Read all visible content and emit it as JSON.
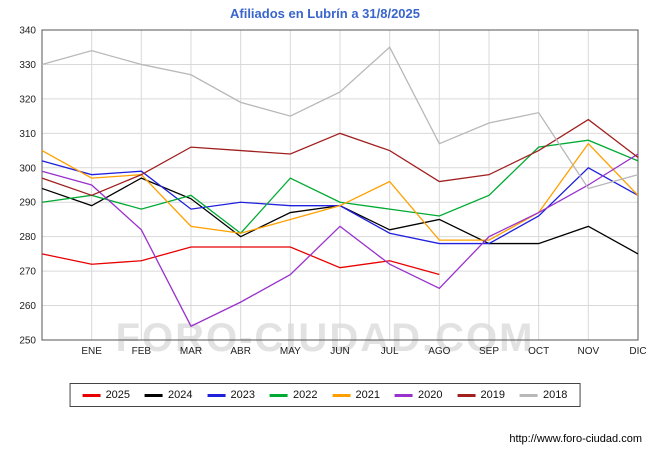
{
  "watermark": "FORO-CIUDAD.COM",
  "footer": {
    "url": "http://www.foro-ciudad.com"
  },
  "colors": {
    "title": "#3a66cc",
    "grid": "#d9d9d9",
    "plot_border": "#555555",
    "watermark": "#cccccc"
  },
  "chart_data": {
    "type": "line",
    "title": "Afiliados en Lubrín a 31/8/2025",
    "xlabel": "",
    "ylabel": "",
    "ylim": [
      250,
      340
    ],
    "ytick_step": 10,
    "grid": true,
    "legend_position": "bottom",
    "categories": [
      "",
      "ENE",
      "FEB",
      "MAR",
      "ABR",
      "MAY",
      "JUN",
      "JUL",
      "AGO",
      "SEP",
      "OCT",
      "NOV",
      "DIC"
    ],
    "series": [
      {
        "name": "2025",
        "color": "#e80000",
        "values": [
          275,
          272,
          273,
          277,
          277,
          277,
          271,
          273,
          269,
          null,
          null,
          null,
          null
        ]
      },
      {
        "name": "2024",
        "color": "#000000",
        "values": [
          294,
          289,
          297,
          291,
          280,
          287,
          289,
          282,
          285,
          278,
          278,
          283,
          275
        ]
      },
      {
        "name": "2023",
        "color": "#2020dd",
        "values": [
          302,
          298,
          299,
          288,
          290,
          289,
          289,
          281,
          278,
          278,
          286,
          300,
          292
        ]
      },
      {
        "name": "2022",
        "color": "#00aa33",
        "values": [
          290,
          292,
          288,
          292,
          281,
          297,
          290,
          288,
          286,
          292,
          306,
          308,
          302
        ]
      },
      {
        "name": "2021",
        "color": "#ffa000",
        "values": [
          305,
          297,
          298,
          283,
          281,
          285,
          289,
          296,
          279,
          279,
          287,
          307,
          292
        ]
      },
      {
        "name": "2020",
        "color": "#9932cc",
        "values": [
          299,
          295,
          282,
          254,
          261,
          269,
          283,
          272,
          265,
          280,
          287,
          295,
          304
        ]
      },
      {
        "name": "2019",
        "color": "#a02020",
        "values": [
          297,
          292,
          298,
          306,
          305,
          304,
          310,
          305,
          296,
          298,
          305,
          314,
          303
        ]
      },
      {
        "name": "2018",
        "color": "#b8b8b8",
        "values": [
          330,
          334,
          330,
          327,
          319,
          315,
          322,
          335,
          307,
          313,
          316,
          294,
          298
        ]
      }
    ]
  }
}
